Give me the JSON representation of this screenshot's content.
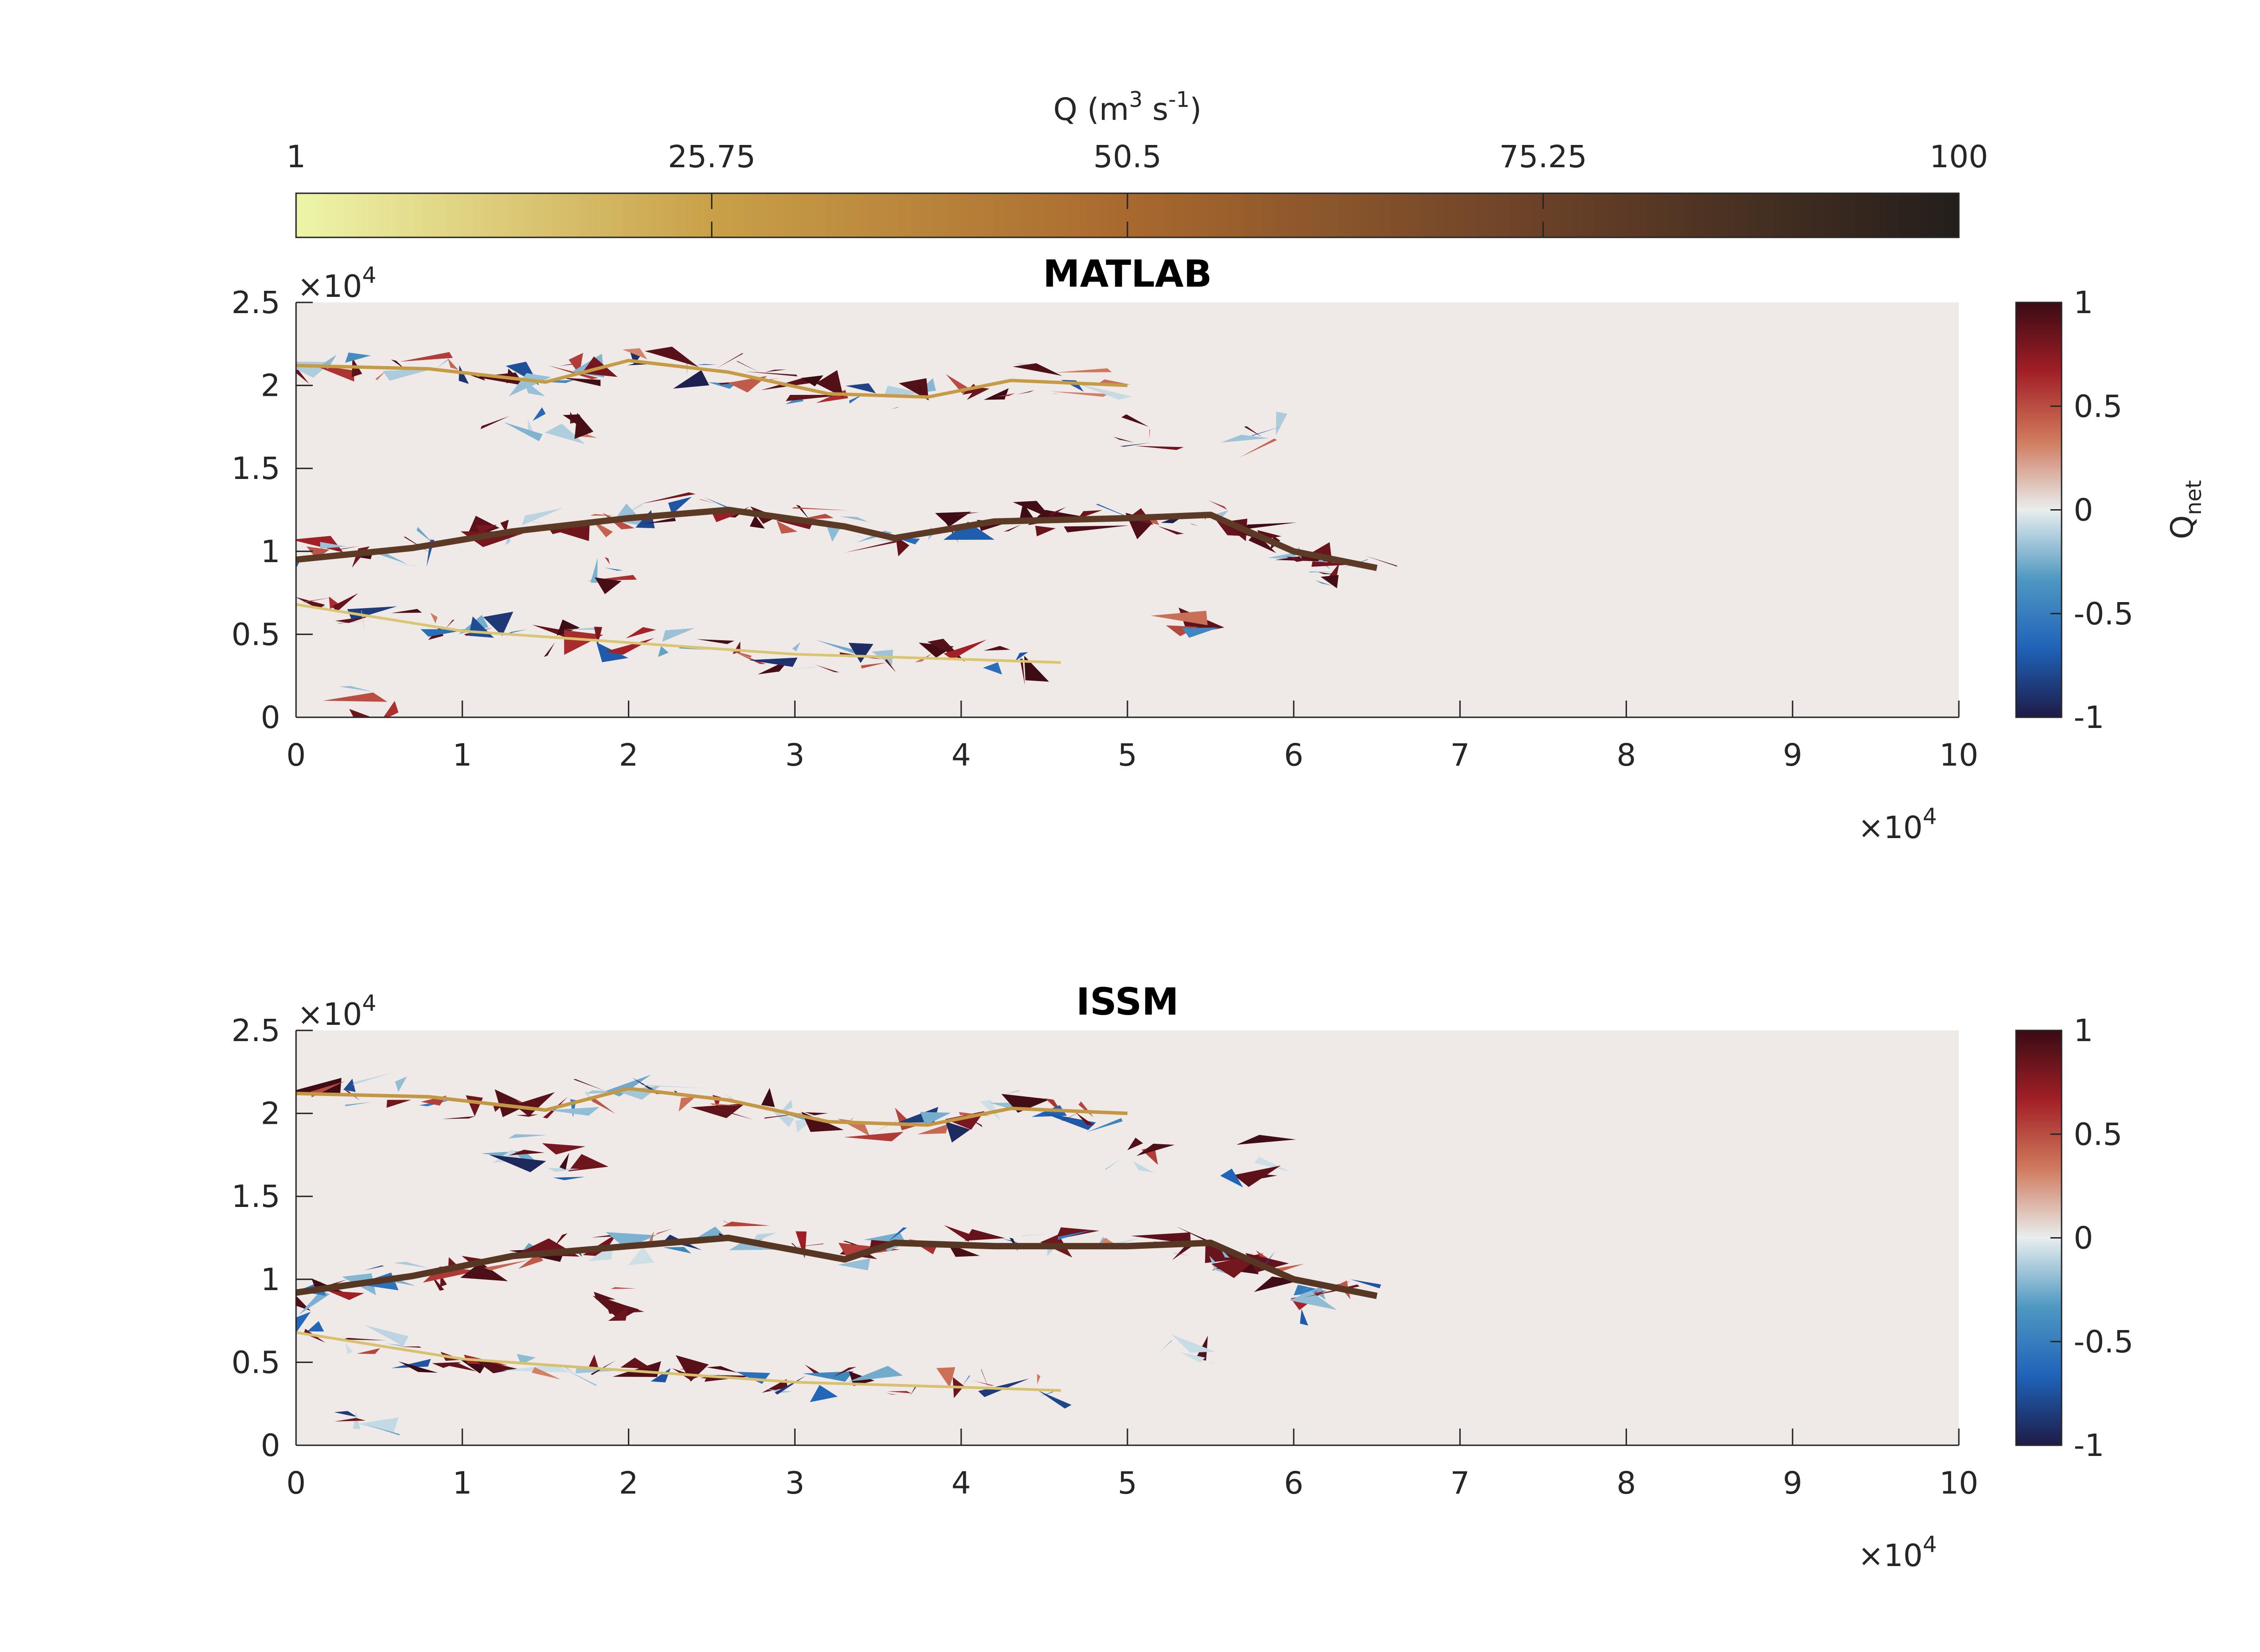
{
  "colorbar_top": {
    "label_main": "Q (m",
    "label_sup1": "3",
    "label_mid": " s",
    "label_sup2": "-1",
    "label_end": ")",
    "ticks": [
      {
        "value": 1,
        "label": "1"
      },
      {
        "value": 25.75,
        "label": "25.75"
      },
      {
        "value": 50.5,
        "label": "50.5"
      },
      {
        "value": 75.25,
        "label": "75.25"
      },
      {
        "value": 100,
        "label": "100"
      }
    ],
    "range": [
      1,
      100
    ],
    "colors": [
      "#eef5a8",
      "#c9a048",
      "#a9692e",
      "#6a4128",
      "#231e1b"
    ]
  },
  "colorbar_side": {
    "label_main": "Q",
    "label_sub": "net",
    "ticks": [
      {
        "value": 1,
        "label": "1"
      },
      {
        "value": 0.5,
        "label": "0.5"
      },
      {
        "value": 0,
        "label": "0"
      },
      {
        "value": -0.5,
        "label": "-0.5"
      },
      {
        "value": -1,
        "label": "-1"
      }
    ],
    "range": [
      -1,
      1
    ],
    "colors": [
      "#1e1b47",
      "#1f63b8",
      "#4f98c2",
      "#e9eeee",
      "#d07a5e",
      "#a21f26",
      "#3a0b14"
    ]
  },
  "multiplier": {
    "base": "×10",
    "exp": "4"
  },
  "chart_data": [
    {
      "type": "heatmap",
      "title": "MATLAB",
      "xlim": [
        0,
        10
      ],
      "ylim": [
        0,
        2.5
      ],
      "x_scale_exponent": 4,
      "y_scale_exponent": 4,
      "xticks": [
        "0",
        "1",
        "2",
        "3",
        "4",
        "5",
        "6",
        "7",
        "8",
        "9",
        "10"
      ],
      "yticks": [
        "0",
        "0.5",
        "1",
        "1.5",
        "2",
        "2.5"
      ],
      "background_color": "#efe9e8",
      "channels": [
        {
          "name": "",
          "points": [
            [
              0,
              2.12
            ],
            [
              0.8,
              2.1
            ],
            [
              1.5,
              2.02
            ],
            [
              2.0,
              2.15
            ],
            [
              2.6,
              2.08
            ],
            [
              3.2,
              1.95
            ],
            [
              3.8,
              1.93
            ],
            [
              4.3,
              2.03
            ],
            [
              5.0,
              2.0
            ]
          ],
          "q": 28
        },
        {
          "name": "",
          "points": [
            [
              0,
              0.95
            ],
            [
              0.7,
              1.02
            ],
            [
              1.3,
              1.12
            ],
            [
              2.0,
              1.2
            ],
            [
              2.6,
              1.25
            ],
            [
              3.3,
              1.15
            ],
            [
              3.6,
              1.08
            ],
            [
              4.2,
              1.18
            ],
            [
              5.0,
              1.2
            ],
            [
              5.5,
              1.22
            ],
            [
              6.0,
              1.0
            ],
            [
              6.5,
              0.9
            ]
          ],
          "q": 80
        },
        {
          "name": "",
          "points": [
            [
              0,
              0.68
            ],
            [
              1.0,
              0.52
            ],
            [
              2.0,
              0.45
            ],
            [
              3.0,
              0.38
            ],
            [
              4.0,
              0.35
            ],
            [
              4.6,
              0.33
            ]
          ],
          "q": 15
        }
      ]
    },
    {
      "type": "heatmap",
      "title": "ISSM",
      "xlim": [
        0,
        10
      ],
      "ylim": [
        0,
        2.5
      ],
      "x_scale_exponent": 4,
      "y_scale_exponent": 4,
      "xticks": [
        "0",
        "1",
        "2",
        "3",
        "4",
        "5",
        "6",
        "7",
        "8",
        "9",
        "10"
      ],
      "yticks": [
        "0",
        "0.5",
        "1",
        "1.5",
        "2",
        "2.5"
      ],
      "background_color": "#efe9e8",
      "channels": [
        {
          "name": "",
          "points": [
            [
              0,
              2.12
            ],
            [
              0.8,
              2.1
            ],
            [
              1.5,
              2.02
            ],
            [
              2.0,
              2.15
            ],
            [
              2.6,
              2.08
            ],
            [
              3.2,
              1.95
            ],
            [
              3.8,
              1.93
            ],
            [
              4.3,
              2.03
            ],
            [
              5.0,
              2.0
            ]
          ],
          "q": 30
        },
        {
          "name": "",
          "points": [
            [
              0,
              0.92
            ],
            [
              0.7,
              1.02
            ],
            [
              1.3,
              1.14
            ],
            [
              2.0,
              1.2
            ],
            [
              2.6,
              1.25
            ],
            [
              3.3,
              1.12
            ],
            [
              3.6,
              1.22
            ],
            [
              4.2,
              1.2
            ],
            [
              5.0,
              1.2
            ],
            [
              5.5,
              1.22
            ],
            [
              6.0,
              1.0
            ],
            [
              6.5,
              0.9
            ]
          ],
          "q": 82
        },
        {
          "name": "",
          "points": [
            [
              0,
              0.68
            ],
            [
              1.0,
              0.52
            ],
            [
              2.0,
              0.45
            ],
            [
              3.0,
              0.38
            ],
            [
              4.0,
              0.35
            ],
            [
              4.6,
              0.33
            ]
          ],
          "q": 16
        }
      ]
    }
  ]
}
